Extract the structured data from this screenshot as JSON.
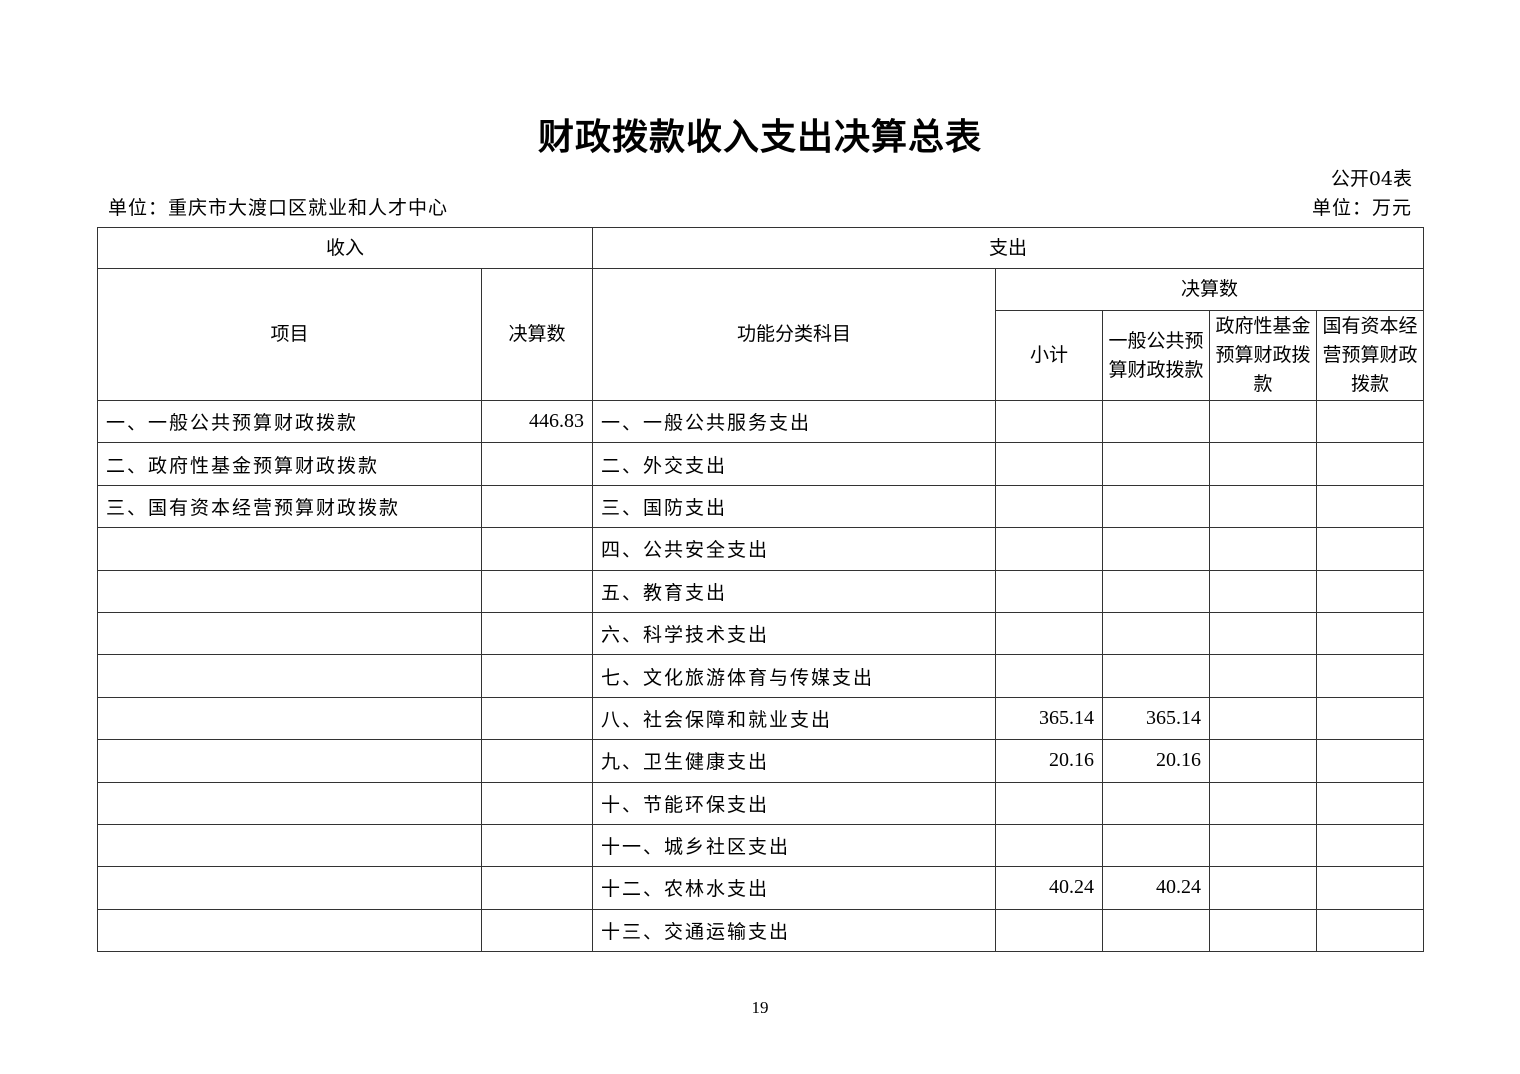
{
  "title": "财政拨款收入支出决算总表",
  "table_no": "公开04表",
  "unit_org": "单位：重庆市大渡口区就业和人才中心",
  "unit_money": "单位：万元",
  "headers": {
    "income": "收入",
    "expense": "支出",
    "item": "项目",
    "amount": "决算数",
    "func": "功能分类科目",
    "final": "决算数",
    "subtotal": "小计",
    "general": "一般公共预算财政拨款",
    "fund": "政府性基金预算财政拨款",
    "state": "国有资本经营预算财政拨款"
  },
  "rows": [
    {
      "income_item": "一、一般公共预算财政拨款",
      "income_amount": "446.83",
      "func": "一、一般公共服务支出",
      "subtotal": "",
      "general": "",
      "fund": "",
      "state": ""
    },
    {
      "income_item": "二、政府性基金预算财政拨款",
      "income_amount": "",
      "func": "二、外交支出",
      "subtotal": "",
      "general": "",
      "fund": "",
      "state": ""
    },
    {
      "income_item": "三、国有资本经营预算财政拨款",
      "income_amount": "",
      "func": "三、国防支出",
      "subtotal": "",
      "general": "",
      "fund": "",
      "state": ""
    },
    {
      "income_item": "",
      "income_amount": "",
      "func": "四、公共安全支出",
      "subtotal": "",
      "general": "",
      "fund": "",
      "state": ""
    },
    {
      "income_item": "",
      "income_amount": "",
      "func": "五、教育支出",
      "subtotal": "",
      "general": "",
      "fund": "",
      "state": ""
    },
    {
      "income_item": "",
      "income_amount": "",
      "func": "六、科学技术支出",
      "subtotal": "",
      "general": "",
      "fund": "",
      "state": ""
    },
    {
      "income_item": "",
      "income_amount": "",
      "func": "七、文化旅游体育与传媒支出",
      "subtotal": "",
      "general": "",
      "fund": "",
      "state": ""
    },
    {
      "income_item": "",
      "income_amount": "",
      "func": "八、社会保障和就业支出",
      "subtotal": "365.14",
      "general": "365.14",
      "fund": "",
      "state": ""
    },
    {
      "income_item": "",
      "income_amount": "",
      "func": "九、卫生健康支出",
      "subtotal": "20.16",
      "general": "20.16",
      "fund": "",
      "state": ""
    },
    {
      "income_item": "",
      "income_amount": "",
      "func": "十、节能环保支出",
      "subtotal": "",
      "general": "",
      "fund": "",
      "state": ""
    },
    {
      "income_item": "",
      "income_amount": "",
      "func": "十一、城乡社区支出",
      "subtotal": "",
      "general": "",
      "fund": "",
      "state": ""
    },
    {
      "income_item": "",
      "income_amount": "",
      "func": "十二、农林水支出",
      "subtotal": "40.24",
      "general": "40.24",
      "fund": "",
      "state": ""
    },
    {
      "income_item": "",
      "income_amount": "",
      "func": "十三、交通运输支出",
      "subtotal": "",
      "general": "",
      "fund": "",
      "state": ""
    }
  ],
  "page_number": "19"
}
